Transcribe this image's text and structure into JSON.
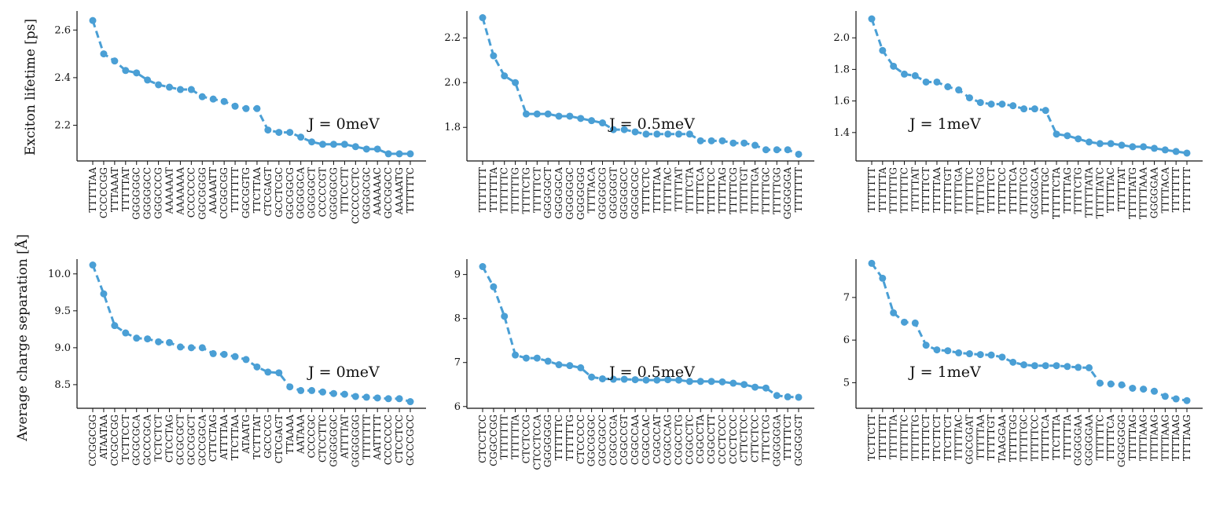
{
  "figure": {
    "row_ylabels": [
      "Exciton lifetime [ps]",
      "Average charge separation [Å]"
    ],
    "line_color": "#4a9fd5"
  },
  "chart_data": [
    {
      "type": "line",
      "annotation": "J = 0meV",
      "ylim": [
        2.05,
        2.68
      ],
      "yticks": [
        "2.2",
        "2.4",
        "2.6"
      ],
      "categories": [
        "TTTTTAA",
        "CCCCCGG",
        "TTTAAAT",
        "TTTTTAT",
        "GGGGGGC",
        "GGGGGCC",
        "GGGCCCG",
        "AAAAAAT",
        "AAAAAAA",
        "CCCCCCC",
        "GGCGGGG",
        "AAAAATT",
        "CCGGCGG",
        "TTTTTTT",
        "GGCGGTG",
        "TTCTTAA",
        "CTCGAGT",
        "GCCTCGC",
        "GGCGGCG",
        "GGGGGCA",
        "GGGGGCT",
        "CCCCCGT",
        "GGGGGCG",
        "TTTCCTT",
        "CCCCCCTC",
        "GGGGCGC",
        "AAAAAAC",
        "GCCGGCC",
        "AAAAATG",
        "TTTTTTC"
      ],
      "values": [
        2.64,
        2.5,
        2.47,
        2.43,
        2.42,
        2.39,
        2.37,
        2.36,
        2.35,
        2.35,
        2.32,
        2.31,
        2.3,
        2.28,
        2.27,
        2.27,
        2.18,
        2.17,
        2.17,
        2.15,
        2.13,
        2.12,
        2.12,
        2.12,
        2.11,
        2.1,
        2.1,
        2.08,
        2.08,
        2.08
      ]
    },
    {
      "type": "line",
      "annotation": "J = 0.5meV",
      "ylim": [
        1.65,
        2.32
      ],
      "yticks": [
        "1.8",
        "2.0",
        "2.2"
      ],
      "categories": [
        "TTTTTTT",
        "TTTTTTA",
        "TTTTTTC",
        "TTTTTTG",
        "TTTTCTG",
        "TTTTTCT",
        "GGGGGCT",
        "GGGGGCA",
        "GGGGGGC",
        "GGGGGGG",
        "TTTTACA",
        "GGGGGCG",
        "GGGGGGT",
        "GGGGGCC",
        "GGGGCGC",
        "TTTTCTC",
        "TTTTTAA",
        "TTTTTAC",
        "TTTTTAT",
        "TTTTCTA",
        "TTTTTCA",
        "TTTTTCC",
        "TTTTTAG",
        "TTTTTCG",
        "TTTTTGT",
        "TTTTTGA",
        "TTTTTGC",
        "TTTTTGG",
        "GGGGGGA",
        "TTTTTTT"
      ],
      "values": [
        2.29,
        2.12,
        2.03,
        2.0,
        1.86,
        1.86,
        1.86,
        1.85,
        1.85,
        1.84,
        1.83,
        1.82,
        1.79,
        1.79,
        1.78,
        1.77,
        1.77,
        1.77,
        1.77,
        1.77,
        1.74,
        1.74,
        1.74,
        1.73,
        1.73,
        1.72,
        1.7,
        1.7,
        1.7,
        1.68
      ]
    },
    {
      "type": "line",
      "annotation": "J = 1meV",
      "ylim": [
        1.22,
        2.17
      ],
      "yticks": [
        "1.4",
        "1.6",
        "1.8",
        "2.0"
      ],
      "categories": [
        "TTTTTTT",
        "TTTTTTA",
        "TTTTTTG",
        "TTTTTTC",
        "TTTTTAT",
        "TTTTTCT",
        "TTTTTAA",
        "TTTTTGT",
        "TTTTTGA",
        "TTTTTTC",
        "TTTTTGG",
        "TTTTTCT",
        "TTTTTCC",
        "TTTTTCA",
        "TTTTTCG",
        "GGGGGCA",
        "TTTTTGC",
        "TTTTTCTA",
        "TTTTTAG",
        "TTTTCTG",
        "TTTTTATA",
        "TTTTTATC",
        "TTTTTAC",
        "TTTTTAT",
        "TTTTTATG",
        "TTTTTAAA",
        "GGGGGAA",
        "TTTTACA",
        "TTTTTTT",
        "TTTTTTT"
      ],
      "values": [
        2.12,
        1.92,
        1.82,
        1.77,
        1.76,
        1.72,
        1.72,
        1.69,
        1.67,
        1.62,
        1.59,
        1.58,
        1.58,
        1.57,
        1.55,
        1.55,
        1.54,
        1.39,
        1.38,
        1.36,
        1.34,
        1.33,
        1.33,
        1.32,
        1.31,
        1.31,
        1.3,
        1.29,
        1.28,
        1.27
      ]
    },
    {
      "type": "line",
      "annotation": "J = 0meV",
      "ylim": [
        8.18,
        10.2
      ],
      "yticks": [
        "8.5",
        "9.0",
        "9.5",
        "10.0"
      ],
      "categories": [
        "CCGGCGG",
        "ATAATAA",
        "CCGCCGG",
        "TCTTCCT",
        "GCGCGCA",
        "GCCCGCA",
        "TCTCTCT",
        "CTCCTAG",
        "GCGCGCT",
        "GCCGGCT",
        "GCCGGCA",
        "CTTCTAG",
        "ATTTTAA",
        "TTCTTAA",
        "ATAATG",
        "TCTTTAT",
        "GCCCCG",
        "CTCGAGT",
        "TTAAAA",
        "AATAAA",
        "CCCCGC",
        "CTCCTTC",
        "GGGGGGC",
        "ATTTTAT",
        "GGGGGGG",
        "TTTTTTT",
        "AATTTTT",
        "CCCCCCC",
        "CTCCTCC",
        "GCCCGCC"
      ],
      "values": [
        10.12,
        9.73,
        9.3,
        9.2,
        9.13,
        9.12,
        9.08,
        9.07,
        9.01,
        9.0,
        9.0,
        8.92,
        8.91,
        8.88,
        8.84,
        8.74,
        8.67,
        8.66,
        8.47,
        8.42,
        8.42,
        8.4,
        8.38,
        8.37,
        8.34,
        8.33,
        8.32,
        8.31,
        8.31,
        8.27
      ]
    },
    {
      "type": "line",
      "annotation": "J = 0.5meV",
      "ylim": [
        5.96,
        9.35
      ],
      "yticks": [
        "6",
        "7",
        "8",
        "9"
      ],
      "categories": [
        "CTCCTCC",
        "CGGCCGG",
        "TTTTTTT",
        "TTTTTTA",
        "CTCTCCG",
        "CTCCTCCA",
        "GGGGGGG",
        "TTTTTTC",
        "TTTTTTG",
        "CTCCCCC",
        "GGCGGGC",
        "GGCGGCC",
        "CGGCCGA",
        "CGGCCGT",
        "CGGCCAA",
        "CGGCCAC",
        "CGGCCAT",
        "CGGCCAG",
        "CGGCCTG",
        "CGGCCTC",
        "CGGCCTA",
        "CGGCCTT",
        "CCCTCCC",
        "CCCTCCC",
        "CTTCTCC",
        "CTTCTCC",
        "TTTCTCG",
        "GGGGGGA",
        "TTTTTCT",
        "GGGGGGT"
      ],
      "values": [
        9.18,
        8.72,
        8.05,
        7.17,
        7.1,
        7.1,
        7.03,
        6.95,
        6.93,
        6.88,
        6.67,
        6.63,
        6.62,
        6.62,
        6.61,
        6.6,
        6.6,
        6.61,
        6.6,
        6.57,
        6.57,
        6.57,
        6.56,
        6.53,
        6.5,
        6.44,
        6.42,
        6.25,
        6.22,
        6.21
      ]
    },
    {
      "type": "line",
      "annotation": "J = 1meV",
      "ylim": [
        4.4,
        7.9
      ],
      "yticks": [
        "5",
        "6",
        "7"
      ],
      "categories": [
        "TCTTCTT",
        "TTTTTTT",
        "TTTTTTA",
        "TTTTTTC",
        "TTTTTTG",
        "TTTTTCT",
        "TTCTTCT",
        "TTCTTCT",
        "TTTTTAC",
        "GGCGGAT",
        "TTTTTAA",
        "TTTTTGT",
        "TAAGGAA",
        "TTTTTGG",
        "TTTTTGC",
        "TTTTTCC",
        "TTTTTCA",
        "TTCTTTA",
        "TTTTTTA",
        "GGGGGAA",
        "GGGGGAA",
        "TTTTTTC",
        "TTTTTCA",
        "GGGGGGG",
        "TTTTTAG",
        "TTTTAAG",
        "TTTTAAG",
        "TTTTAAG",
        "TTTTAAG",
        "TTTTAAG"
      ],
      "values": [
        7.8,
        7.45,
        6.64,
        6.42,
        6.4,
        5.88,
        5.77,
        5.75,
        5.7,
        5.68,
        5.66,
        5.65,
        5.6,
        5.48,
        5.42,
        5.4,
        5.4,
        5.4,
        5.38,
        5.36,
        5.35,
        4.99,
        4.97,
        4.95,
        4.87,
        4.85,
        4.8,
        4.68,
        4.62,
        4.58
      ]
    }
  ]
}
